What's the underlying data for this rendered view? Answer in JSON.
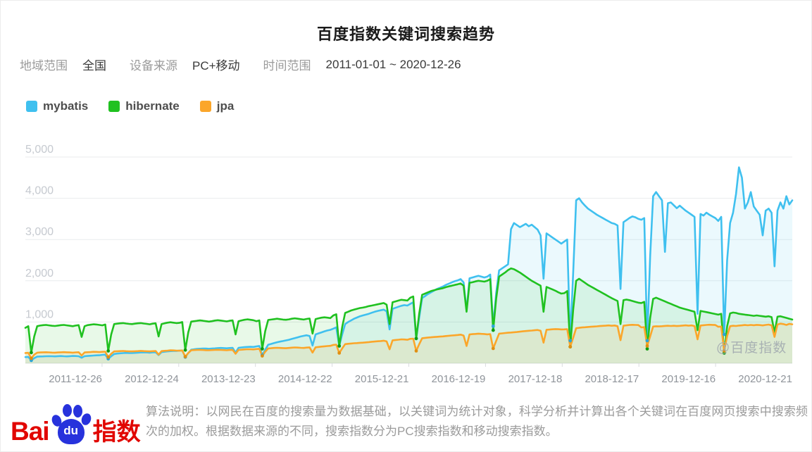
{
  "title": "百度指数关键词搜索趋势",
  "filters": {
    "region_label": "地域范围",
    "region_value": "全国",
    "device_label": "设备来源",
    "device_value": "PC+移动",
    "time_label": "时间范围",
    "time_value": "2011-01-01 ~ 2020-12-26"
  },
  "legend": [
    {
      "label": "mybatis",
      "color": "#3fc0ef"
    },
    {
      "label": "hibernate",
      "color": "#20c120"
    },
    {
      "label": "jpa",
      "color": "#fba62a"
    }
  ],
  "watermark": "@百度指数",
  "footer": {
    "brand": {
      "bai": "Bai",
      "du": "du",
      "suffix": "指数"
    },
    "description": "算法说明：以网民在百度的搜索量为数据基础，以关键词为统计对象，科学分析并计算出各个关键词在百度网页搜索中搜索频次的加权。根据数据来源的不同，搜索指数分为PC搜索指数和移动搜索指数。"
  },
  "chart_data": {
    "type": "line",
    "title": "百度指数关键词搜索趋势",
    "x_range": [
      "2011-01-01",
      "2020-12-26"
    ],
    "points_per_year": 26,
    "ylim": [
      0,
      5000
    ],
    "grid": true,
    "legend_position": "top-left",
    "y_ticks": [
      {
        "label": "1,000",
        "value": 1000
      },
      {
        "label": "2,000",
        "value": 2000
      },
      {
        "label": "3,000",
        "value": 3000
      },
      {
        "label": "4,000",
        "value": 4000
      },
      {
        "label": "5,000",
        "value": 5000
      }
    ],
    "x_labels": [
      "2011-12-26",
      "2012-12-24",
      "2013-12-23",
      "2014-12-22",
      "2015-12-21",
      "2016-12-19",
      "2017-12-18",
      "2018-12-17",
      "2019-12-16",
      "2020-12-21"
    ],
    "series": [
      {
        "name": "mybatis",
        "color": "#3fc0ef",
        "dot_color": "#2aa5d8",
        "fill": "rgba(63,192,239,0.10)",
        "values": [
          150,
          155,
          70,
          125,
          160,
          165,
          168,
          170,
          172,
          170,
          168,
          172,
          175,
          170,
          168,
          173,
          178,
          175,
          170,
          135,
          172,
          178,
          182,
          188,
          192,
          195,
          205,
          210,
          110,
          170,
          225,
          235,
          242,
          248,
          252,
          250,
          248,
          252,
          258,
          262,
          266,
          262,
          258,
          264,
          268,
          200,
          272,
          280,
          288,
          295,
          300,
          298,
          305,
          312,
          150,
          250,
          330,
          340,
          348,
          354,
          358,
          356,
          352,
          356,
          362,
          368,
          372,
          368,
          364,
          370,
          374,
          260,
          376,
          384,
          390,
          396,
          400,
          396,
          410,
          420,
          200,
          330,
          450,
          470,
          490,
          510,
          525,
          540,
          555,
          570,
          590,
          610,
          630,
          650,
          665,
          680,
          660,
          430,
          700,
          725,
          750,
          775,
          795,
          810,
          840,
          870,
          420,
          700,
          950,
          1000,
          1040,
          1080,
          1110,
          1140,
          1160,
          1180,
          1200,
          1225,
          1250,
          1270,
          1285,
          1300,
          1260,
          820,
          1320,
          1345,
          1370,
          1395,
          1410,
          1400,
          1440,
          1480,
          600,
          1100,
          1580,
          1630,
          1680,
          1720,
          1760,
          1800,
          1830,
          1860,
          1900,
          1930,
          1960,
          1990,
          2010,
          2040,
          1960,
          1280,
          2060,
          2080,
          2100,
          2120,
          2100,
          2080,
          2100,
          2150,
          900,
          1700,
          2250,
          2300,
          2350,
          2400,
          3250,
          3400,
          3350,
          3300,
          3340,
          3380,
          3320,
          3360,
          3300,
          3240,
          3100,
          2050,
          3150,
          3100,
          3050,
          3000,
          2950,
          2900,
          2950,
          3000,
          550,
          2200,
          3950,
          4000,
          3900,
          3820,
          3750,
          3700,
          3650,
          3600,
          3560,
          3520,
          3480,
          3440,
          3400,
          3380,
          3340,
          1800,
          3420,
          3470,
          3520,
          3560,
          3540,
          3500,
          3480,
          3520,
          550,
          2600,
          4050,
          4150,
          4050,
          3950,
          2700,
          3880,
          3900,
          3830,
          3760,
          3820,
          3760,
          3700,
          3650,
          3600,
          3550,
          1200,
          3620,
          3580,
          3650,
          3600,
          3560,
          3520,
          3450,
          3550,
          700,
          2500,
          3400,
          3650,
          4100,
          4750,
          4500,
          3750,
          3900,
          4150,
          3800,
          3700,
          3600,
          3100,
          3700,
          3750,
          3650,
          2350,
          3700,
          3900,
          3750,
          4050,
          3850,
          3950
        ]
      },
      {
        "name": "hibernate",
        "color": "#20c120",
        "dot_color": "#0f9c0f",
        "fill": "rgba(32,193,32,0.10)",
        "values": [
          860,
          900,
          260,
          650,
          900,
          915,
          925,
          930,
          920,
          910,
          905,
          915,
          925,
          930,
          920,
          910,
          900,
          915,
          925,
          640,
          900,
          925,
          935,
          945,
          940,
          930,
          920,
          940,
          300,
          700,
          950,
          960,
          970,
          975,
          965,
          955,
          950,
          960,
          970,
          975,
          965,
          955,
          945,
          960,
          970,
          650,
          950,
          970,
          985,
          995,
          985,
          975,
          980,
          1000,
          320,
          750,
          1010,
          1020,
          1030,
          1040,
          1030,
          1020,
          1010,
          1020,
          1035,
          1045,
          1035,
          1025,
          1015,
          1030,
          1040,
          700,
          1020,
          1040,
          1055,
          1065,
          1055,
          1045,
          1020,
          1040,
          350,
          780,
          1050,
          1060,
          1070,
          1080,
          1070,
          1060,
          1055,
          1065,
          1080,
          1090,
          1080,
          1070,
          1060,
          1075,
          1085,
          720,
          1070,
          1090,
          1105,
          1115,
          1105,
          1095,
          1160,
          1190,
          420,
          880,
          1220,
          1250,
          1280,
          1300,
          1320,
          1340,
          1350,
          1365,
          1385,
          1400,
          1415,
          1430,
          1445,
          1460,
          1420,
          950,
          1480,
          1500,
          1520,
          1540,
          1530,
          1520,
          1590,
          1620,
          600,
          1200,
          1660,
          1690,
          1720,
          1750,
          1770,
          1790,
          1805,
          1820,
          1845,
          1865,
          1880,
          1900,
          1915,
          1935,
          1880,
          1250,
          1950,
          1965,
          1985,
          2000,
          1990,
          1980,
          2000,
          2040,
          800,
          1560,
          2100,
          2150,
          2200,
          2260,
          2300,
          2280,
          2240,
          2200,
          2150,
          2100,
          2050,
          2000,
          1960,
          1920,
          1880,
          1250,
          1850,
          1820,
          1790,
          1760,
          1720,
          1690,
          1700,
          1750,
          400,
          1300,
          2000,
          2050,
          2000,
          1950,
          1900,
          1860,
          1820,
          1780,
          1740,
          1700,
          1660,
          1620,
          1580,
          1545,
          1510,
          950,
          1530,
          1545,
          1530,
          1510,
          1490,
          1470,
          1460,
          1490,
          350,
          1100,
          1560,
          1590,
          1560,
          1530,
          1500,
          1470,
          1440,
          1410,
          1380,
          1350,
          1330,
          1310,
          1290,
          1270,
          1250,
          800,
          1270,
          1255,
          1240,
          1225,
          1210,
          1195,
          1180,
          1200,
          250,
          900,
          1210,
          1230,
          1220,
          1200,
          1190,
          1180,
          1170,
          1160,
          1150,
          1160,
          1150,
          1140,
          1130,
          1140,
          1120,
          750,
          1130,
          1140,
          1120,
          1100,
          1080,
          1060
        ]
      },
      {
        "name": "jpa",
        "color": "#fba62a",
        "dot_color": "#e08f12",
        "fill": "rgba(251,166,42,0.12)",
        "values": [
          250,
          255,
          120,
          210,
          258,
          262,
          266,
          268,
          264,
          260,
          258,
          262,
          266,
          270,
          266,
          262,
          258,
          264,
          268,
          190,
          262,
          268,
          272,
          278,
          276,
          272,
          278,
          282,
          150,
          230,
          288,
          292,
          296,
          298,
          294,
          290,
          288,
          292,
          296,
          300,
          296,
          292,
          288,
          294,
          298,
          210,
          296,
          302,
          308,
          314,
          312,
          308,
          305,
          310,
          160,
          250,
          316,
          320,
          324,
          326,
          322,
          318,
          316,
          320,
          324,
          328,
          324,
          320,
          316,
          322,
          326,
          230,
          324,
          330,
          336,
          342,
          340,
          336,
          345,
          352,
          180,
          280,
          360,
          366,
          372,
          376,
          372,
          368,
          366,
          372,
          378,
          384,
          380,
          376,
          372,
          380,
          386,
          260,
          388,
          396,
          404,
          412,
          418,
          424,
          445,
          452,
          250,
          360,
          465,
          472,
          480,
          486,
          490,
          496,
          500,
          506,
          514,
          522,
          528,
          534,
          540,
          548,
          530,
          340,
          556,
          564,
          572,
          580,
          576,
          570,
          592,
          598,
          300,
          460,
          608,
          616,
          624,
          630,
          636,
          642,
          646,
          652,
          660,
          668,
          674,
          680,
          686,
          694,
          672,
          420,
          700,
          706,
          712,
          718,
          714,
          710,
          702,
          708,
          360,
          540,
          718,
          726,
          734,
          740,
          746,
          752,
          758,
          766,
          774,
          782,
          788,
          794,
          800,
          808,
          788,
          500,
          812,
          818,
          824,
          830,
          826,
          820,
          822,
          828,
          400,
          620,
          850,
          860,
          868,
          874,
          880,
          886,
          890,
          896,
          902,
          908,
          912,
          918,
          910,
          916,
          900,
          560,
          912,
          920,
          928,
          934,
          930,
          926,
          870,
          876,
          420,
          650,
          890,
          898,
          894,
          900,
          906,
          910,
          904,
          910,
          902,
          908,
          914,
          920,
          912,
          918,
          902,
          580,
          916,
          924,
          930,
          936,
          932,
          928,
          885,
          890,
          300,
          660,
          900,
          910,
          905,
          915,
          920,
          928,
          922,
          930,
          924,
          932,
          926,
          918,
          930,
          938,
          920,
          640,
          940,
          960,
          950,
          930,
          955,
          945
        ]
      }
    ]
  }
}
